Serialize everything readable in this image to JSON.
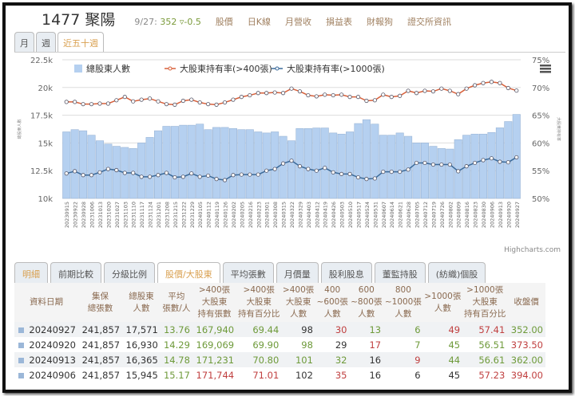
{
  "header": {
    "title": "1477 聚陽",
    "date": "9/27:",
    "price": "352",
    "change": "▿-0.5",
    "links": [
      "股價",
      "日K線",
      "月營收",
      "損益表",
      "財報狗",
      "證交所資訊"
    ]
  },
  "period_tabs": [
    "月",
    "週",
    "近五十週"
  ],
  "chart_data": {
    "type": "bar+line",
    "title": "",
    "legend": [
      "總股東人數",
      "大股東持有率(>400張)",
      "大股東持有率(>1000張)"
    ],
    "legend_position": "top",
    "ylabel_left": "總股東人數",
    "ylabel_right": "大股東持有率",
    "yticks_left": [
      "10k",
      "12.5k",
      "15k",
      "17.5k",
      "20k",
      "22.5k"
    ],
    "ylim_left": [
      10000,
      22500
    ],
    "yticks_right": [
      "50%",
      "55%",
      "60%",
      "65%",
      "70%",
      "75%"
    ],
    "ylim_right": [
      50,
      75
    ],
    "credit": "Highcharts.com",
    "categories": [
      "20230915",
      "20230922",
      "20230928",
      "20231006",
      "20231013",
      "20231020",
      "20231027",
      "20231103",
      "20231110",
      "20231117",
      "20231124",
      "20231201",
      "20231208",
      "20231215",
      "20231222",
      "20231229",
      "20240105",
      "20240112",
      "20240119",
      "20240126",
      "20240202",
      "20240205",
      "20240216",
      "20240223",
      "20240301",
      "20240308",
      "20240315",
      "20240322",
      "20240329",
      "20240403",
      "20240412",
      "20240419",
      "20240426",
      "20240503",
      "20240510",
      "20240517",
      "20240524",
      "20240531",
      "20240607",
      "20240614",
      "20240621",
      "20240628",
      "20240705",
      "20240712",
      "20240719",
      "20240726",
      "20240802",
      "20240809",
      "20240816",
      "20240823",
      "20240830",
      "20240906",
      "20240913",
      "20240920",
      "20240927"
    ],
    "series": [
      {
        "name": "總股東人數",
        "type": "bar",
        "color": "#b5d0f0",
        "values": [
          16000,
          16200,
          16100,
          15700,
          15200,
          14900,
          14700,
          14600,
          14500,
          15000,
          15500,
          16100,
          16500,
          16500,
          16600,
          16600,
          16700,
          16200,
          16400,
          16400,
          16300,
          16200,
          16200,
          16000,
          15900,
          16000,
          15600,
          15200,
          16300,
          16300,
          16350,
          16350,
          15900,
          15800,
          16000,
          16750,
          17100,
          16700,
          15700,
          15700,
          15900,
          15600,
          15000,
          15000,
          14700,
          14500,
          14450,
          15300,
          15700,
          15800,
          15800,
          15945,
          16365,
          16930,
          17571
        ]
      },
      {
        "name": "大股東持有率(>400張)",
        "type": "line",
        "color": "#d8603a",
        "values": [
          67.4,
          67.4,
          67.0,
          67.0,
          67.1,
          67.1,
          67.7,
          68.3,
          67.5,
          67.8,
          68.0,
          67.5,
          67.0,
          66.9,
          67.6,
          67.8,
          67.3,
          67.0,
          66.9,
          67.3,
          67.8,
          68.3,
          68.6,
          69.0,
          69.0,
          69.1,
          69.0,
          69.8,
          69.3,
          68.6,
          68.4,
          68.7,
          68.6,
          68.7,
          68.3,
          68.3,
          67.6,
          67.7,
          68.7,
          68.3,
          68.5,
          69.4,
          69.0,
          69.4,
          69.3,
          69.8,
          69.4,
          68.8,
          69.8,
          70.4,
          70.8,
          71.01,
          70.8,
          69.9,
          69.44
        ]
      },
      {
        "name": "大股東持有率(>1000張)",
        "type": "line",
        "color": "#3a6a9a",
        "values": [
          54.5,
          54.9,
          54.2,
          54.2,
          54.7,
          55.3,
          55.1,
          54.6,
          54.6,
          53.9,
          53.9,
          54.2,
          54.6,
          53.8,
          53.9,
          54.5,
          53.9,
          54.1,
          53.5,
          53.3,
          54.2,
          54.3,
          54.3,
          54.3,
          55.0,
          55.3,
          56.3,
          56.8,
          55.8,
          55.3,
          55.0,
          55.5,
          54.7,
          54.4,
          54.4,
          53.8,
          53.5,
          53.6,
          54.8,
          54.8,
          54.8,
          55.2,
          56.4,
          56.4,
          56.1,
          56.1,
          56.1,
          54.9,
          55.8,
          56.4,
          56.9,
          57.23,
          56.61,
          56.51,
          57.41
        ]
      }
    ]
  },
  "detail_tabs": [
    "明細",
    "前期比較",
    "分級比例",
    "股價/大股東",
    "平均張數",
    "月價量",
    "股利股息",
    "董監持股",
    "(紡織)個股"
  ],
  "table": {
    "headers": [
      "資料日期",
      "集保\n總張數",
      "總股東\n人數",
      "平均\n張數/人",
      ">400張\n大股東\n持有張數",
      ">400張\n大股東\n持有百分比",
      ">400張\n大股東\n人數",
      "400\n~600張\n人數",
      "600\n~800張\n人數",
      "800\n~1000張\n人數",
      ">1000張\n人數",
      ">1000張\n大股東\n持有百分比",
      "收盤價"
    ],
    "rows": [
      {
        "cells": [
          "20240927",
          "241,857",
          "17,571",
          "13.76",
          "167,940",
          "69.44",
          "98",
          "30",
          "13",
          "6",
          "49",
          "57.41",
          "352.00"
        ],
        "colors": [
          "k",
          "k",
          "k",
          "g",
          "g",
          "g",
          "k",
          "rd",
          "g",
          "g",
          "rd",
          "rd",
          "g"
        ]
      },
      {
        "cells": [
          "20240920",
          "241,857",
          "16,930",
          "14.29",
          "169,069",
          "69.90",
          "98",
          "29",
          "17",
          "7",
          "45",
          "56.51",
          "373.50"
        ],
        "colors": [
          "k",
          "k",
          "k",
          "g",
          "g",
          "g",
          "g",
          "k",
          "rd",
          "g",
          "g",
          "g",
          "rd"
        ]
      },
      {
        "cells": [
          "20240913",
          "241,857",
          "16,365",
          "14.78",
          "171,231",
          "70.80",
          "101",
          "32",
          "16",
          "9",
          "44",
          "56.61",
          "362.00"
        ],
        "colors": [
          "k",
          "k",
          "k",
          "g",
          "g",
          "g",
          "g",
          "g",
          "k",
          "rd",
          "g",
          "g",
          "g"
        ]
      },
      {
        "cells": [
          "20240906",
          "241,857",
          "15,945",
          "15.17",
          "171,744",
          "71.01",
          "102",
          "35",
          "16",
          "6",
          "45",
          "57.23",
          "394.00"
        ],
        "colors": [
          "k",
          "k",
          "k",
          "g",
          "rd",
          "rd",
          "k",
          "rd",
          "k",
          "k",
          "k",
          "rd",
          "rd"
        ]
      }
    ]
  }
}
